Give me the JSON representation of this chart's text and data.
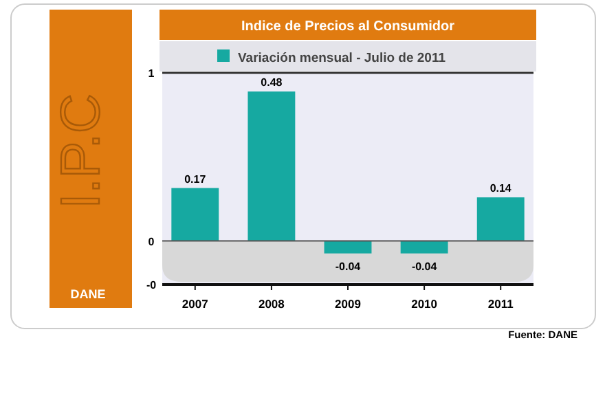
{
  "chart_data": {
    "type": "bar",
    "title": "Indice de Precios al Consumidor",
    "subtitle": "I.P.C",
    "categories": [
      "2007",
      "2008",
      "2009",
      "2010",
      "2011"
    ],
    "series": [
      {
        "name": "Variación mensual - Julio de 2011",
        "color": "#16a9a1",
        "values": [
          0.17,
          0.48,
          -0.04,
          -0.04,
          0.14
        ]
      }
    ],
    "ylim": [
      -0.14,
      0.54
    ],
    "yticks": [
      {
        "value": 0.54,
        "label": "1"
      },
      0,
      {
        "value": -0.14,
        "label": "-0"
      }
    ],
    "data_labels": true,
    "legend": "top",
    "annotations": [
      "DANE",
      "Fuente: DANE"
    ]
  }
}
